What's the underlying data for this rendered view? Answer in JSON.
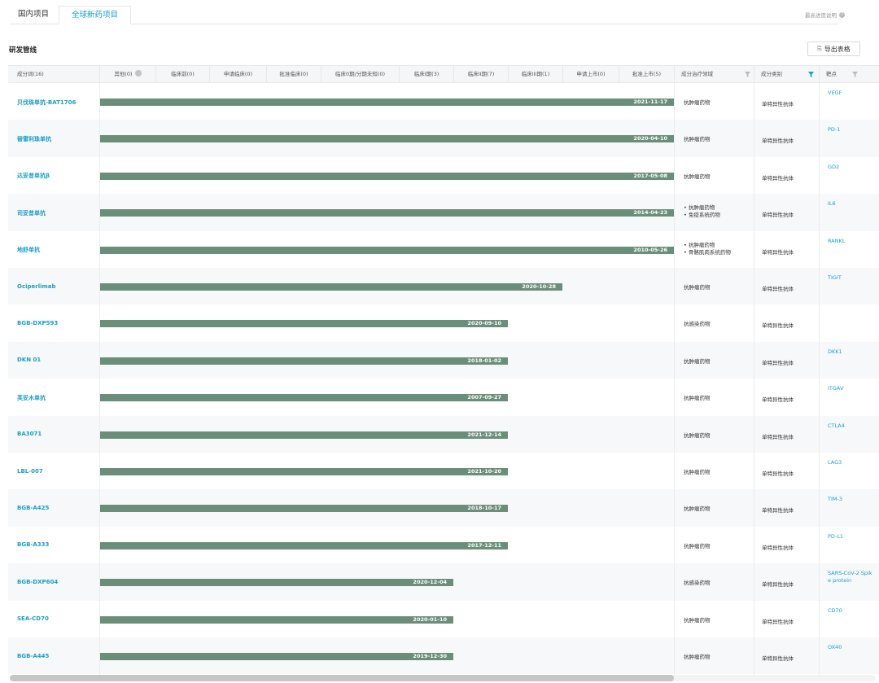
{
  "tabs": [
    {
      "label": "国内项目",
      "active": false
    },
    {
      "label": "全球新药项目",
      "active": true
    }
  ],
  "help_text": "最高进度说明",
  "section_title": "研发管线",
  "export_label": "导出表格",
  "colors": {
    "accent": "#1aa0c8",
    "bar": "#6b8e7a",
    "header_bg": "#f5f6f7"
  },
  "header": {
    "name": "成分词(16)",
    "stages": [
      "其他(0)",
      "临床前(0)",
      "申请临床(0)",
      "批准临床(0)",
      "临床0期/分期未知(0)",
      "临床I期(3)",
      "临床II期(7)",
      "临床III期(1)",
      "申请上市(0)",
      "批准上市(5)"
    ],
    "area": "成分治疗领域",
    "category": "成分类别",
    "target": "靶点"
  },
  "rows": [
    {
      "name": "贝伐珠单抗-BAT1706",
      "date": "2021-11-17",
      "stage_index": 10,
      "areas": [
        "抗肿瘤药物"
      ],
      "category": "单特异性抗体",
      "target": "VEGF"
    },
    {
      "name": "替雷利珠单抗",
      "date": "2020-04-10",
      "stage_index": 10,
      "areas": [
        "抗肿瘤药物"
      ],
      "category": "单特异性抗体",
      "target": "PD-1"
    },
    {
      "name": "达妥昔单抗β",
      "date": "2017-05-08",
      "stage_index": 10,
      "areas": [
        "抗肿瘤药物"
      ],
      "category": "单特异性抗体",
      "target": "GD2"
    },
    {
      "name": "司妥昔单抗",
      "date": "2014-04-23",
      "stage_index": 10,
      "areas": [
        "抗肿瘤药物",
        "免疫系统药物"
      ],
      "category": "单特异性抗体",
      "target": "IL6"
    },
    {
      "name": "地舒单抗",
      "date": "2010-05-26",
      "stage_index": 10,
      "areas": [
        "抗肿瘤药物",
        "骨骼肌肉系统药物"
      ],
      "category": "单特异性抗体",
      "target": "RANKL"
    },
    {
      "name": "Ociperlimab",
      "date": "2020-10-28",
      "stage_index": 8,
      "areas": [
        "抗肿瘤药物"
      ],
      "category": "单特异性抗体",
      "target": "TIGIT"
    },
    {
      "name": "BGB-DXP593",
      "date": "2020-09-10",
      "stage_index": 7,
      "areas": [
        "抗感染药物"
      ],
      "category": "单特异性抗体",
      "target": ""
    },
    {
      "name": "DKN 01",
      "date": "2018-01-02",
      "stage_index": 7,
      "areas": [
        "抗肿瘤药物"
      ],
      "category": "单特异性抗体",
      "target": "DKK1"
    },
    {
      "name": "芙妥木单抗",
      "date": "2007-09-27",
      "stage_index": 7,
      "areas": [
        "抗肿瘤药物"
      ],
      "category": "单特异性抗体",
      "target": "ITGAV"
    },
    {
      "name": "BA3071",
      "date": "2021-12-14",
      "stage_index": 7,
      "areas": [
        "抗肿瘤药物"
      ],
      "category": "单特异性抗体",
      "target": "CTLA4"
    },
    {
      "name": "LBL-007",
      "date": "2021-10-20",
      "stage_index": 7,
      "areas": [
        "抗肿瘤药物"
      ],
      "category": "单特异性抗体",
      "target": "LAG3"
    },
    {
      "name": "BGB-A425",
      "date": "2018-10-17",
      "stage_index": 7,
      "areas": [
        "抗肿瘤药物"
      ],
      "category": "单特异性抗体",
      "target": "TIM-3"
    },
    {
      "name": "BGB-A333",
      "date": "2017-12-11",
      "stage_index": 7,
      "areas": [
        "抗肿瘤药物"
      ],
      "category": "单特异性抗体",
      "target": "PD-L1"
    },
    {
      "name": "BGB-DXP604",
      "date": "2020-12-04",
      "stage_index": 6,
      "areas": [
        "抗感染药物"
      ],
      "category": "单特异性抗体",
      "target": "SARS-CoV-2 Spike protein"
    },
    {
      "name": "SEA-CD70",
      "date": "2020-01-10",
      "stage_index": 6,
      "areas": [
        "抗肿瘤药物"
      ],
      "category": "单特异性抗体",
      "target": "CD70"
    },
    {
      "name": "BGB-A445",
      "date": "2019-12-30",
      "stage_index": 6,
      "areas": [
        "抗肿瘤药物"
      ],
      "category": "单特异性抗体",
      "target": "OX40"
    }
  ]
}
